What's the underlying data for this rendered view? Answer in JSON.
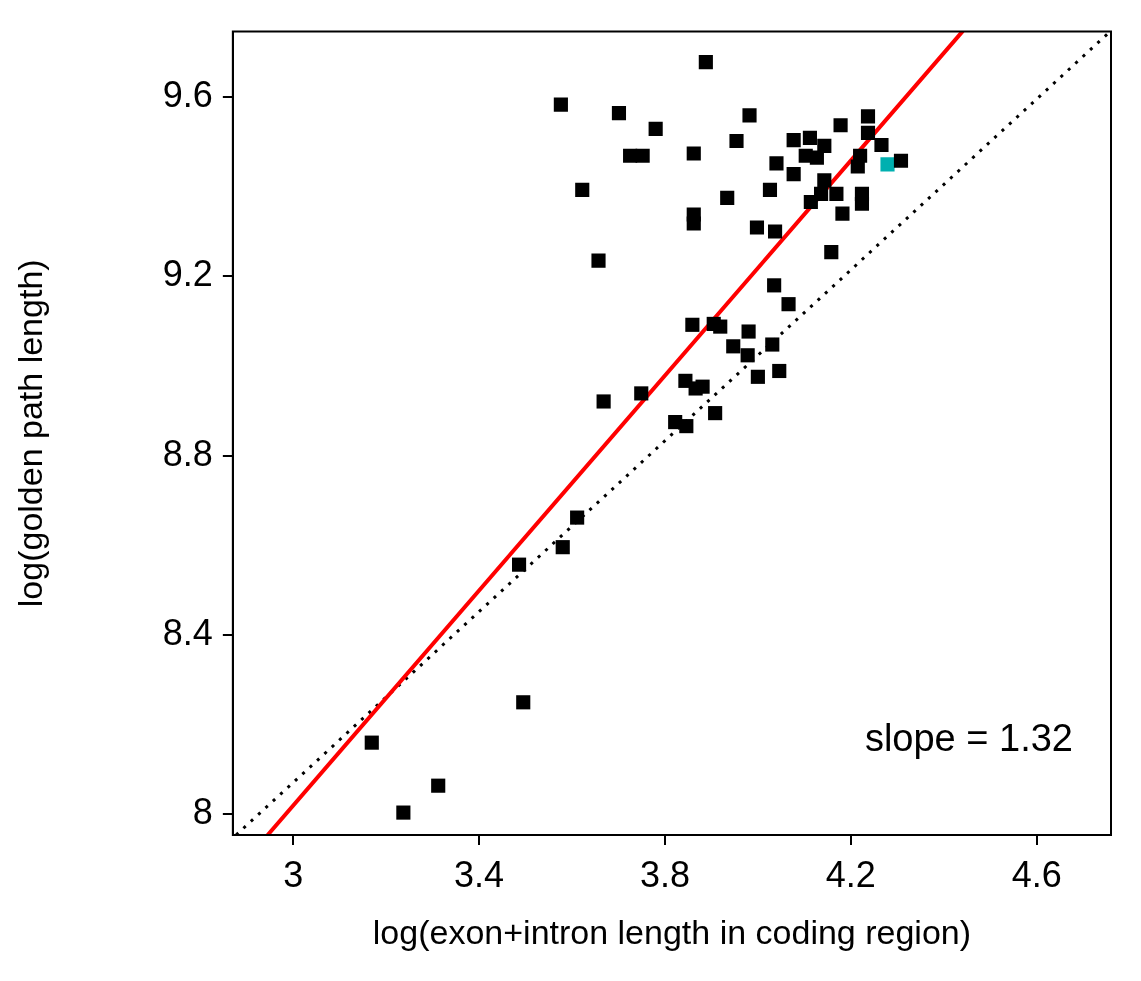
{
  "chart_data": {
    "type": "scatter",
    "xlabel": "log(exon+intron length in coding region)",
    "ylabel": "log(golden path length)",
    "xlim": [
      2.87,
      4.76
    ],
    "ylim": [
      7.954,
      9.746
    ],
    "xticks": [
      3,
      3.4,
      3.8,
      4.2,
      4.6
    ],
    "yticks": [
      8,
      8.4,
      8.8,
      9.2,
      9.6
    ],
    "grid": false,
    "legend": false,
    "annotations": [
      "slope = 1.32"
    ],
    "series": [
      {
        "color": "#000000",
        "marker": "square",
        "x": [
          3.169,
          3.237,
          3.312,
          3.495,
          3.486,
          3.58,
          3.611,
          3.668,
          3.749,
          3.657,
          3.622,
          3.576,
          3.701,
          3.78,
          3.725,
          3.752,
          3.888,
          3.862,
          3.862,
          3.862,
          3.982,
          3.954,
          3.934,
          4.026,
          4.04,
          3.998,
          4.037,
          4.035,
          4.066,
          4.158,
          4.077,
          4.112,
          4.178,
          4.237,
          4.237,
          4.266,
          4.22,
          4.215,
          4.308,
          4.143,
          4.077,
          4.143,
          4.103,
          4.114,
          4.169,
          4.224,
          4.224,
          4.182,
          3.859,
          3.905,
          3.919,
          3.98,
          3.947,
          3.978,
          4.031,
          4,
          4.046,
          3.844,
          3.866,
          3.881,
          3.908,
          3.822,
          3.846,
          4.127,
          4.136
        ],
        "values": [
          8.16,
          8.004,
          8.064,
          8.25,
          8.557,
          8.596,
          8.662,
          8.921,
          8.939,
          9.235,
          9.393,
          9.583,
          9.564,
          9.529,
          9.469,
          9.469,
          9.678,
          9.474,
          9.338,
          9.318,
          9.559,
          9.502,
          9.375,
          9.393,
          9.452,
          9.309,
          9.3,
          9.18,
          9.138,
          9.254,
          9.504,
          9.509,
          9.537,
          9.557,
          9.52,
          9.493,
          9.469,
          9.445,
          9.458,
          9.491,
          9.428,
          9.414,
          9.469,
          9.366,
          9.384,
          9.384,
          9.362,
          9.34,
          9.092,
          9.094,
          9.088,
          9.077,
          9.044,
          9.024,
          9.048,
          8.976,
          8.989,
          8.967,
          8.95,
          8.954,
          8.895,
          8.875,
          8.866,
          9.465,
          9.384
        ]
      },
      {
        "color": "#00b0b0",
        "marker": "square",
        "x": [
          4.279
        ],
        "values": [
          9.45
        ]
      },
      {
        "type": "line",
        "color": "#ff0000",
        "marker": "none",
        "line_style": "solid",
        "x": [
          2.945,
          4.44
        ],
        "values": [
          7.954,
          9.746
        ]
      },
      {
        "type": "line",
        "color": "#000000",
        "marker": "none",
        "line_style": "dotted",
        "x": [
          2.877,
          4.758
        ],
        "values": [
          7.954,
          9.746
        ]
      }
    ]
  }
}
